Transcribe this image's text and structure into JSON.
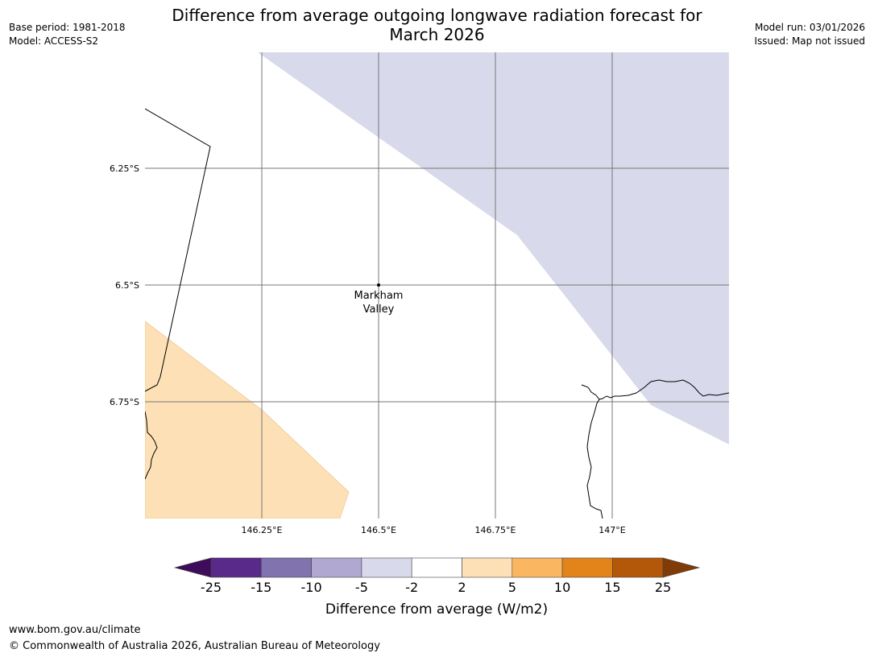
{
  "title": "Difference from average outgoing longwave radiation forecast for March 2026",
  "title_line1": "Difference from average outgoing longwave radiation forecast for",
  "title_line2": "March 2026",
  "left_meta": {
    "base_period": "Base period: 1981-2018",
    "model": "Model: ACCESS-S2"
  },
  "right_meta": {
    "model_run": "Model run: 03/01/2026",
    "issued": "Issued: Map not issued"
  },
  "map": {
    "latitude_labels": [
      "6.25°S",
      "6.5°S",
      "6.75°S"
    ],
    "longitude_labels": [
      "146.25°E",
      "146.5°E",
      "146.75°E",
      "147°E"
    ],
    "place": {
      "name_line1": "Markham",
      "name_line2": "Valley",
      "lon": 146.5,
      "lat": -6.5
    },
    "region_colors": {
      "negative_small": "#d8d9ea",
      "positive_small": "#fde0b6"
    }
  },
  "colorbar": {
    "title": "Difference from average (W/m2)",
    "ticks": [
      "-25",
      "-15",
      "-10",
      "-5",
      "-2",
      "2",
      "5",
      "10",
      "15",
      "25"
    ],
    "colors": [
      "#3f0c5c",
      "#5a2a8a",
      "#8073ae",
      "#b0a8d1",
      "#d8d9ea",
      "#ffffff",
      "#fde0b6",
      "#fab660",
      "#e2841a",
      "#b35808",
      "#7f3b08"
    ]
  },
  "footer": {
    "url": "www.bom.gov.au/climate",
    "copyright": "© Commonwealth of Australia 2026, Australian Bureau of Meteorology"
  }
}
